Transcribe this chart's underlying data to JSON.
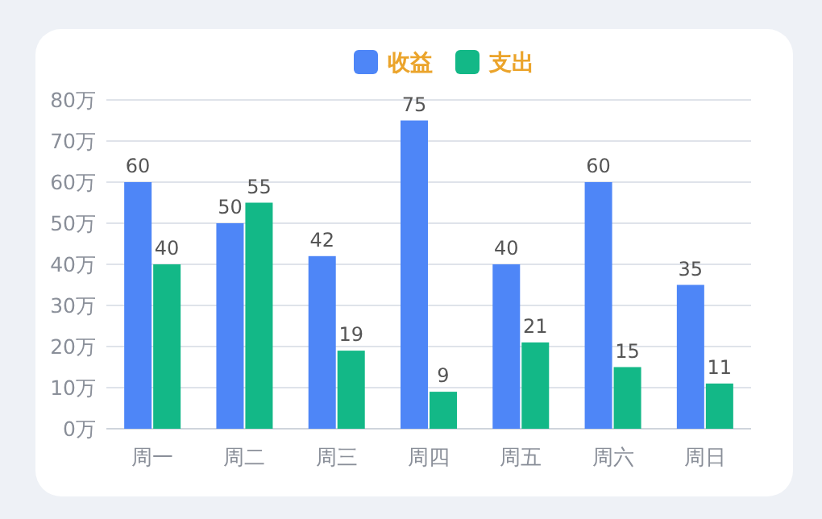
{
  "chart_data": {
    "type": "bar",
    "categories": [
      "周一",
      "周二",
      "周三",
      "周四",
      "周五",
      "周六",
      "周日"
    ],
    "series": [
      {
        "name": "收益",
        "color": "#4e86f7",
        "values": [
          60,
          50,
          42,
          75,
          40,
          60,
          35
        ]
      },
      {
        "name": "支出",
        "color": "#13b887",
        "values": [
          40,
          55,
          19,
          9,
          21,
          15,
          11
        ]
      }
    ],
    "ylim": [
      0,
      80
    ],
    "yticks": [
      {
        "value": 0,
        "label": "0万"
      },
      {
        "value": 10,
        "label": "10万"
      },
      {
        "value": 20,
        "label": "20万"
      },
      {
        "value": 30,
        "label": "30万"
      },
      {
        "value": 40,
        "label": "40万"
      },
      {
        "value": 50,
        "label": "50万"
      },
      {
        "value": 60,
        "label": "60万"
      },
      {
        "value": 70,
        "label": "70万"
      },
      {
        "value": 80,
        "label": "80万"
      }
    ],
    "grid": "y",
    "legend": "top",
    "data_labels": true
  }
}
